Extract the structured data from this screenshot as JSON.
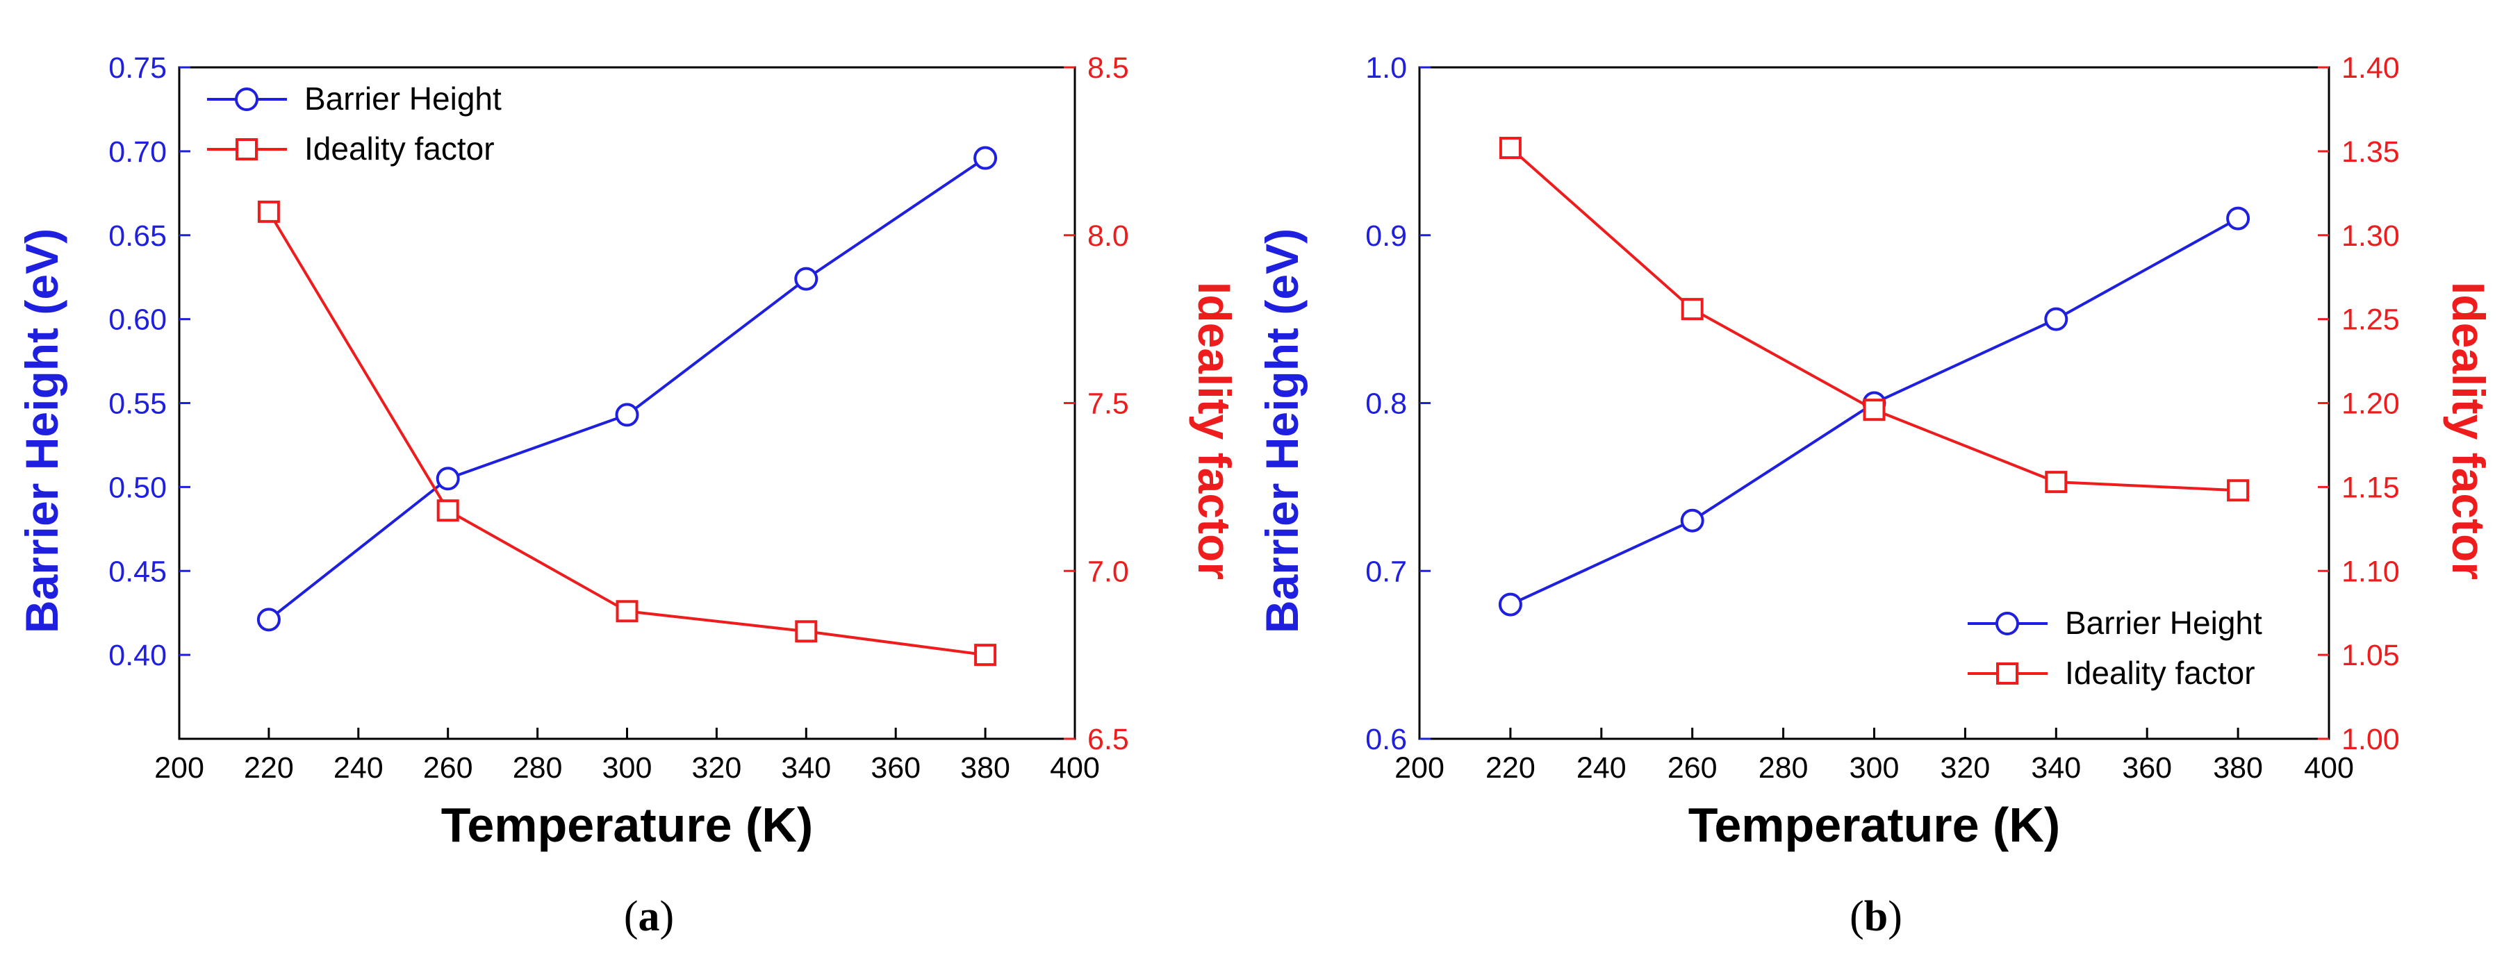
{
  "chart_data": [
    {
      "type": "line",
      "panel_label": "(a)",
      "panel_letter": "a",
      "xlabel": "Temperature (K)",
      "ylabel_left": "Barrier Height (eV)",
      "ylabel_right": "Ideality factor",
      "xlim": [
        200,
        400
      ],
      "xticks": [
        "200",
        "220",
        "240",
        "260",
        "280",
        "300",
        "320",
        "340",
        "360",
        "380",
        "400"
      ],
      "ylim_left": [
        0.35,
        0.75
      ],
      "yticks_left": [
        "0.40",
        "0.45",
        "0.50",
        "0.55",
        "0.60",
        "0.65",
        "0.70",
        "0.75"
      ],
      "ylim_right": [
        6.5,
        8.5
      ],
      "yticks_right": [
        "6.5",
        "7.0",
        "7.5",
        "8.0",
        "8.5"
      ],
      "legend_position": "top-left",
      "grid": false,
      "x": [
        220,
        260,
        300,
        340,
        380
      ],
      "series": [
        {
          "name": "Barrier Height",
          "axis": "left",
          "marker": "circle",
          "color": "#1f1fe0",
          "values": [
            0.421,
            0.505,
            0.543,
            0.624,
            0.696
          ]
        },
        {
          "name": "Ideality factor",
          "axis": "right",
          "marker": "square",
          "color": "#ee1c1c",
          "values": [
            8.07,
            7.18,
            6.88,
            6.82,
            6.75
          ]
        }
      ]
    },
    {
      "type": "line",
      "panel_label": "(b)",
      "panel_letter": "b",
      "xlabel": "Temperature (K)",
      "ylabel_left": "Barrier Height (eV)",
      "ylabel_right": "Ideality factor",
      "xlim": [
        200,
        400
      ],
      "xticks": [
        "200",
        "220",
        "240",
        "260",
        "280",
        "300",
        "320",
        "340",
        "360",
        "380",
        "400"
      ],
      "ylim_left": [
        0.6,
        1.0
      ],
      "yticks_left": [
        "0.6",
        "0.7",
        "0.8",
        "0.9",
        "1.0"
      ],
      "ylim_right": [
        1.0,
        1.4
      ],
      "yticks_right": [
        "1.00",
        "1.05",
        "1.10",
        "1.15",
        "1.20",
        "1.25",
        "1.30",
        "1.35",
        "1.40"
      ],
      "legend_position": "bottom-right",
      "grid": false,
      "x": [
        220,
        260,
        300,
        340,
        380
      ],
      "series": [
        {
          "name": "Barrier Height",
          "axis": "left",
          "marker": "circle",
          "color": "#1f1fe0",
          "values": [
            0.68,
            0.73,
            0.8,
            0.85,
            0.91
          ]
        },
        {
          "name": "Ideality factor",
          "axis": "right",
          "marker": "square",
          "color": "#ee1c1c",
          "values": [
            1.352,
            1.256,
            1.196,
            1.153,
            1.148
          ]
        }
      ]
    }
  ]
}
